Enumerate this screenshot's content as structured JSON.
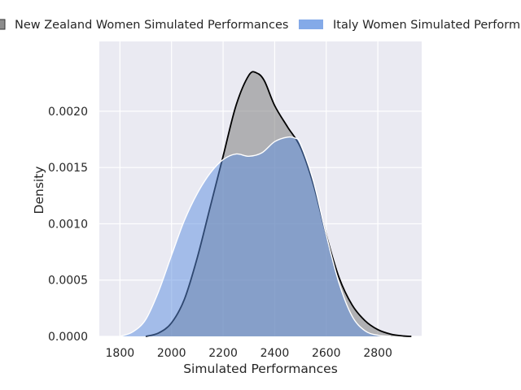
{
  "chart_data": {
    "type": "area",
    "xlabel": "Simulated Performances",
    "ylabel": "Density",
    "xlim": [
      1720,
      2970
    ],
    "ylim": [
      0,
      0.00262
    ],
    "x_ticks": [
      1800,
      2000,
      2200,
      2400,
      2600,
      2800
    ],
    "y_ticks": [
      0,
      0.0005,
      0.001,
      0.0015,
      0.002
    ],
    "x_tick_labels": [
      "1800",
      "2000",
      "2200",
      "2400",
      "2600",
      "2800"
    ],
    "y_tick_labels": [
      "0.0000",
      "0.0005",
      "0.0010",
      "0.0015",
      "0.0020"
    ],
    "grid": true,
    "legend_position": "top",
    "series": [
      {
        "name": "New Zealand Women Simulated Performances",
        "fill_color": "#7f7f7f",
        "line_color": "#000000",
        "x": [
          1900,
          1950,
          2000,
          2050,
          2100,
          2150,
          2200,
          2250,
          2300,
          2330,
          2360,
          2400,
          2450,
          2500,
          2550,
          2600,
          2650,
          2700,
          2750,
          2800,
          2850,
          2900,
          2930
        ],
        "y": [
          0.0,
          3e-05,
          0.00012,
          0.00033,
          0.0007,
          0.00115,
          0.0016,
          0.00205,
          0.00232,
          0.00234,
          0.00227,
          0.00205,
          0.00186,
          0.00168,
          0.00135,
          0.0009,
          0.00052,
          0.00028,
          0.00014,
          6e-05,
          2e-05,
          3e-06,
          0.0
        ]
      },
      {
        "name": "Italy Women Simulated Performances",
        "fill_color": "#5b8ee0",
        "line_color": "#ffffff",
        "x": [
          1800,
          1850,
          1900,
          1950,
          2000,
          2050,
          2100,
          2150,
          2200,
          2250,
          2300,
          2350,
          2400,
          2450,
          2480,
          2500,
          2550,
          2600,
          2650,
          2700,
          2750,
          2800,
          2850
        ],
        "y": [
          0.0,
          4e-05,
          0.00015,
          0.0004,
          0.00072,
          0.00103,
          0.00127,
          0.00145,
          0.00157,
          0.00162,
          0.0016,
          0.00163,
          0.00173,
          0.00177,
          0.00176,
          0.00171,
          0.00138,
          0.0009,
          0.00047,
          0.00018,
          5e-05,
          1e-05,
          0.0
        ]
      }
    ]
  }
}
